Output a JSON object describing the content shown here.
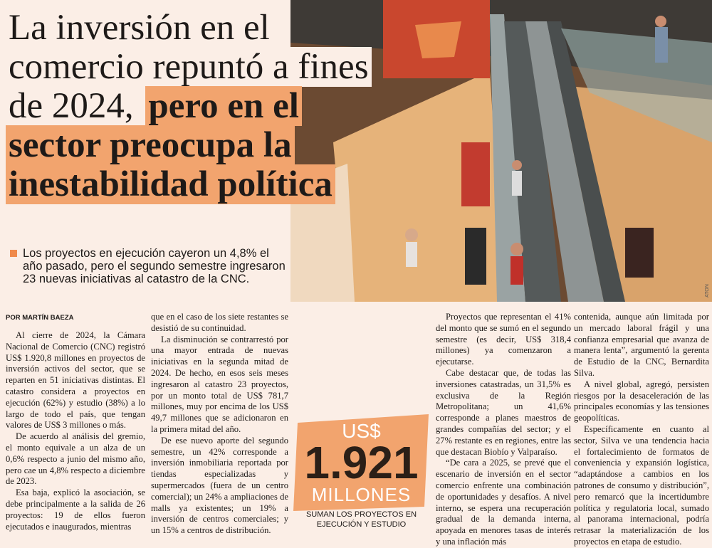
{
  "header": {
    "title_plain": "La inversión en el comercio repuntó a fines de 2024,",
    "title_highlight": "pero en el sector preocupa la inestabilidad política",
    "subtitle": "Los proyectos en ejecución cayeron un 4,8% el año pasado, pero el segundo semestre ingresaron 23 nuevas iniciativas al catastro de la CNC."
  },
  "photo": {
    "credit": "ATON"
  },
  "byline": "POR MARTÍN BAEZA",
  "body": {
    "columns": [
      {
        "paragraphs": [
          "Al cierre de 2024, la Cámara Nacional de Comercio (CNC) registró US$ 1.920,8 millones en proyectos de inversión activos del sector, que se reparten en 51 iniciativas distintas. El catastro considera a proyectos en ejecución (62%) y estudio (38%) a lo largo de todo el país, que tengan valores de US$ 3 millones o más.",
          "De acuerdo al análisis del gremio, el monto equivale a un alza de un 0,6% respecto a junio del mismo año, pero cae un 4,8% respecto a diciembre de 2023.",
          "Esa baja, explicó la asociación, se debe principalmente a la salida de 26 proyectos: 19 de ellos fueron ejecutados e inaugurados, mientras"
        ]
      },
      {
        "paragraphs": [
          "que en el caso de los siete restantes se desistió de su continuidad.",
          "La disminución se contrarrestó por una mayor entrada de nuevas iniciativas en la segunda mitad de 2024. De hecho, en esos seis meses ingresaron al catastro 23 proyectos, por un monto total de US$ 781,7 millones, muy por encima de los US$ 49,7 millones que se adicionaron en la primera mitad del año.",
          "De ese nuevo aporte del segundo semestre, un 42% corresponde a inversión inmobiliaria reportada por tiendas especializadas y supermercados (fuera de un centro comercial); un 24% a ampliaciones de malls ya existentes; un 19% a inversión de centros comerciales; y un 15% a centros de distribución."
        ]
      },
      {
        "paragraphs": [
          "Proyectos que representan el 41% del monto que se sumó en el segundo semestre (es decir, US$ 318,4 millones) ya comenzaron a ejecutarse.",
          "Cabe destacar que, de todas las inversiones catastradas, un 31,5% es exclusiva de la Región Metropolitana; un 41,6% corresponde a planes maestros de grandes compañías del sector; y el 27% restante es en regiones, entre las que destacan Biobío y Valparaíso.",
          "“De cara a 2025, se prevé que el escenario de inversión en el sector comercio enfrente una combinación de oportunidades y desafíos. A nivel interno, se espera una recuperación gradual de la demanda interna, apoyada en menores tasas de interés y una inflación más"
        ]
      },
      {
        "paragraphs": [
          "contenida, aunque aún limitada por un mercado laboral frágil y una confianza empresarial que avanza de manera lenta”, argumentó la gerenta de Estudio de la CNC, Bernardita Silva.",
          "A nivel global, agregó, persisten riesgos por la desaceleración de las principales economías y las tensiones geopolíticas.",
          "Específicamente en cuanto al sector, Silva ve una tendencia hacia el fortalecimiento de formatos de conveniencia y expansión logística, “adaptándose a cambios en los patrones de consumo y distribución”, pero remarcó que la incertidumbre política y regulatoria local, sumado al panorama internacional, podría retrasar la materialización de los proyectos en etapa de estudio."
        ]
      }
    ]
  },
  "callout": {
    "currency": "US$",
    "amount": "1.921",
    "unit": "MILLONES",
    "caption": "SUMAN LOS PROYECTOS EN EJECUCIÓN Y ESTUDIO"
  }
}
